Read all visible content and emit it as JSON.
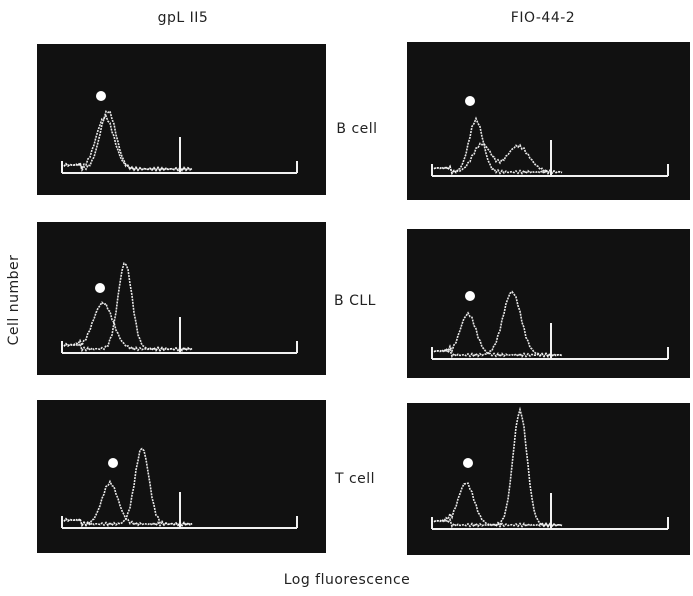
{
  "columns": [
    "gpL II5",
    "FIO-44-2"
  ],
  "rows": [
    "B cell",
    "B CLL",
    "T cell"
  ],
  "y_axis_label": "Cell number",
  "x_axis_label": "Log fluorescence"
}
